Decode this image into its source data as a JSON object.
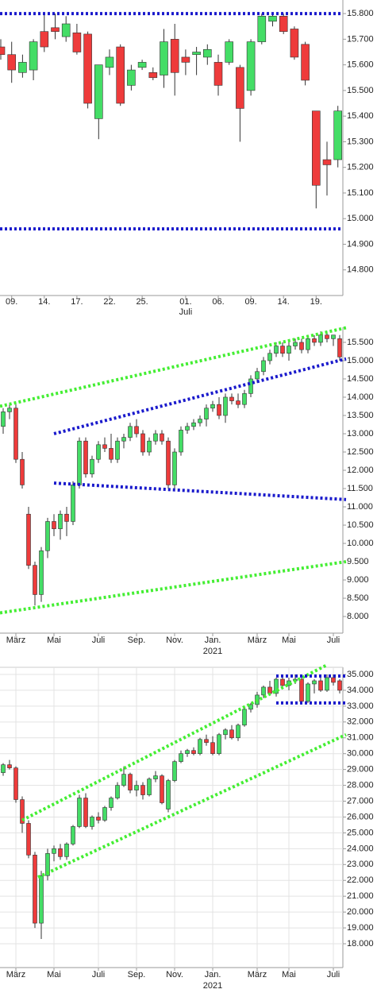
{
  "chart_data": [
    {
      "type": "candlestick",
      "categories": [
        null,
        "09.",
        null,
        null,
        "14.",
        null,
        null,
        "17.",
        null,
        null,
        "22.",
        null,
        null,
        "25.",
        null,
        null,
        null,
        "01.",
        null,
        null,
        "06.",
        null,
        null,
        "09.",
        null,
        null,
        "14.",
        null,
        null,
        "19.",
        null,
        null
      ],
      "category_sublabels": [
        null,
        null,
        null,
        null,
        null,
        null,
        null,
        null,
        null,
        null,
        null,
        null,
        null,
        null,
        null,
        null,
        null,
        "Juli",
        null,
        null,
        null,
        null,
        null,
        null,
        null,
        null,
        null,
        null,
        null,
        null,
        null,
        null
      ],
      "open": [
        15670,
        15640,
        15570,
        15580,
        15730,
        15745,
        15710,
        15725,
        15720,
        15390,
        15590,
        15670,
        15520,
        15590,
        15570,
        15560,
        15700,
        15630,
        15640,
        15630,
        15610,
        15610,
        15590,
        15500,
        15690,
        15770,
        15790,
        15740,
        15680,
        15420,
        15230,
        15230
      ],
      "high": [
        15700,
        15690,
        15640,
        15700,
        15800,
        15800,
        15790,
        15760,
        15730,
        15600,
        15660,
        15680,
        15600,
        15620,
        15590,
        15740,
        15760,
        15660,
        15670,
        15680,
        15640,
        15700,
        15600,
        15700,
        15800,
        15800,
        15800,
        15750,
        15690,
        15420,
        15300,
        15440
      ],
      "low": [
        15620,
        15530,
        15550,
        15540,
        15650,
        15700,
        15690,
        15640,
        15430,
        15310,
        15560,
        15440,
        15500,
        15580,
        15540,
        15510,
        15480,
        15560,
        15560,
        15600,
        15480,
        15600,
        15300,
        15480,
        15680,
        15750,
        15720,
        15620,
        15520,
        15040,
        15090,
        15200
      ],
      "close": [
        15640,
        15580,
        15610,
        15690,
        15670,
        15730,
        15760,
        15650,
        15450,
        15600,
        15630,
        15450,
        15580,
        15610,
        15550,
        15690,
        15570,
        15610,
        15650,
        15660,
        15520,
        15690,
        15430,
        15690,
        15790,
        15790,
        15730,
        15630,
        15540,
        15130,
        15210,
        15420
      ],
      "up_color": "#44dd66",
      "down_color": "#ee3b3b",
      "ylim": [
        14700,
        15853
      ],
      "yticks": [
        {
          "value": 14800,
          "label": "14.800"
        },
        {
          "value": 14900,
          "label": "14.900"
        },
        {
          "value": 15000,
          "label": "15.000"
        },
        {
          "value": 15100,
          "label": "15.100"
        },
        {
          "value": 15200,
          "label": "15.200"
        },
        {
          "value": 15300,
          "label": "15.300"
        },
        {
          "value": 15400,
          "label": "15.400"
        },
        {
          "value": 15500,
          "label": "15.500"
        },
        {
          "value": 15600,
          "label": "15.600"
        },
        {
          "value": 15700,
          "label": "15.700"
        },
        {
          "value": 15800,
          "label": "15.800"
        }
      ],
      "grid": false,
      "hlines": [
        {
          "color": "#1a1acc",
          "value": 15800
        },
        {
          "color": "#1a1acc",
          "value": 14960
        }
      ]
    },
    {
      "type": "candlestick",
      "categories": [
        null,
        null,
        "März",
        null,
        null,
        null,
        null,
        null,
        "Mai",
        null,
        null,
        null,
        null,
        null,
        null,
        "Juli",
        null,
        null,
        null,
        null,
        null,
        "Sep.",
        null,
        null,
        null,
        null,
        null,
        "Nov.",
        null,
        null,
        null,
        null,
        null,
        "Jan.",
        null,
        null,
        null,
        null,
        null,
        null,
        "März",
        null,
        null,
        null,
        null,
        "Mai",
        null,
        null,
        null,
        null,
        null,
        null,
        "Juli",
        null
      ],
      "category_sublabels": [
        null,
        null,
        null,
        null,
        null,
        null,
        null,
        null,
        null,
        null,
        null,
        null,
        null,
        null,
        null,
        null,
        null,
        null,
        null,
        null,
        null,
        null,
        null,
        null,
        null,
        null,
        null,
        null,
        null,
        null,
        null,
        null,
        null,
        "2021",
        null,
        null,
        null,
        null,
        null,
        null,
        null,
        null,
        null,
        null,
        null,
        null,
        null,
        null,
        null,
        null,
        null,
        null,
        null,
        null
      ],
      "open": [
        13200,
        13600,
        13700,
        12300,
        10800,
        9400,
        8600,
        9800,
        10600,
        10400,
        10800,
        10600,
        11600,
        12800,
        11900,
        12300,
        12700,
        12600,
        12300,
        12800,
        12900,
        13200,
        13000,
        12500,
        12800,
        13000,
        12800,
        11600,
        12500,
        13100,
        13200,
        13300,
        13400,
        13700,
        13800,
        13500,
        14000,
        13900,
        13800,
        14100,
        14500,
        14700,
        15000,
        15200,
        15400,
        15200,
        15400,
        15500,
        15300,
        15600,
        15500,
        15700,
        15600,
        15600
      ],
      "high": [
        13700,
        13800,
        13800,
        12500,
        11000,
        9500,
        9900,
        10700,
        10800,
        10900,
        11000,
        11700,
        12900,
        12900,
        12400,
        12800,
        12900,
        13000,
        12900,
        13000,
        13300,
        13400,
        13100,
        12900,
        13100,
        13100,
        12900,
        12600,
        13200,
        13300,
        13400,
        13500,
        13800,
        13900,
        14000,
        14100,
        14100,
        14100,
        14200,
        14600,
        14800,
        15100,
        15300,
        15500,
        15500,
        15500,
        15600,
        15600,
        15700,
        15700,
        15800,
        15800,
        15700,
        15700
      ],
      "low": [
        13000,
        13400,
        12200,
        11500,
        9300,
        8300,
        8400,
        9600,
        10200,
        10100,
        10200,
        10500,
        11500,
        11800,
        11800,
        12200,
        12500,
        12200,
        12200,
        12600,
        12800,
        12900,
        12400,
        12400,
        12700,
        12700,
        11500,
        11500,
        12400,
        13000,
        13100,
        13200,
        13200,
        13600,
        13400,
        13300,
        13800,
        13700,
        13700,
        14000,
        14400,
        14600,
        14900,
        15100,
        15100,
        15000,
        15300,
        15200,
        15200,
        15400,
        15400,
        15500,
        15400,
        15000
      ],
      "close": [
        13600,
        13700,
        12300,
        11600,
        9400,
        8600,
        9800,
        10600,
        10400,
        10800,
        10600,
        11600,
        12800,
        11900,
        12300,
        12700,
        12600,
        12300,
        12800,
        12900,
        13200,
        13000,
        12500,
        12800,
        13000,
        12800,
        11600,
        12500,
        13100,
        13200,
        13300,
        13400,
        13700,
        13800,
        13500,
        14000,
        13900,
        13800,
        14100,
        14500,
        14700,
        15000,
        15200,
        15400,
        15200,
        15400,
        15500,
        15300,
        15600,
        15500,
        15700,
        15600,
        15700,
        15100
      ],
      "up_color": "#44dd66",
      "down_color": "#ee3b3b",
      "ylim": [
        7545,
        15912
      ],
      "yticks": [
        {
          "value": 8000,
          "label": "8.000"
        },
        {
          "value": 8500,
          "label": "8.500"
        },
        {
          "value": 9000,
          "label": "9.000"
        },
        {
          "value": 9500,
          "label": "9.500"
        },
        {
          "value": 10000,
          "label": "10.000"
        },
        {
          "value": 10500,
          "label": "10.500"
        },
        {
          "value": 11000,
          "label": "11.000"
        },
        {
          "value": 11500,
          "label": "11.500"
        },
        {
          "value": 12000,
          "label": "12.000"
        },
        {
          "value": 12500,
          "label": "12.500"
        },
        {
          "value": 13000,
          "label": "13.000"
        },
        {
          "value": 13500,
          "label": "13.500"
        },
        {
          "value": 14000,
          "label": "14.000"
        },
        {
          "value": 14500,
          "label": "14.500"
        },
        {
          "value": 15000,
          "label": "15.000"
        },
        {
          "value": 15500,
          "label": "15.500"
        }
      ],
      "grid": false,
      "trend_lines": [
        {
          "color": "#44ee33",
          "points": [
            [
              -0.5,
              13750
            ],
            [
              54,
              15900
            ]
          ]
        },
        {
          "color": "#44ee33",
          "points": [
            [
              -0.5,
              8100
            ],
            [
              54,
              9500
            ]
          ]
        },
        {
          "color": "#1a1acc",
          "points": [
            [
              8,
              13000
            ],
            [
              54,
              15050
            ]
          ]
        },
        {
          "color": "#1a1acc",
          "points": [
            [
              8,
              11650
            ],
            [
              54,
              11200
            ]
          ]
        }
      ]
    },
    {
      "type": "candlestick",
      "categories": [
        null,
        null,
        "März",
        null,
        null,
        null,
        null,
        null,
        "Mai",
        null,
        null,
        null,
        null,
        null,
        null,
        "Juli",
        null,
        null,
        null,
        null,
        null,
        "Sep.",
        null,
        null,
        null,
        null,
        null,
        "Nov.",
        null,
        null,
        null,
        null,
        null,
        "Jan.",
        null,
        null,
        null,
        null,
        null,
        null,
        "März",
        null,
        null,
        null,
        null,
        "Mai",
        null,
        null,
        null,
        null,
        null,
        null,
        "Juli",
        null
      ],
      "category_sublabels": [
        null,
        null,
        null,
        null,
        null,
        null,
        null,
        null,
        null,
        null,
        null,
        null,
        null,
        null,
        null,
        null,
        null,
        null,
        null,
        null,
        null,
        null,
        null,
        null,
        null,
        null,
        null,
        null,
        null,
        null,
        null,
        null,
        null,
        "2021",
        null,
        null,
        null,
        null,
        null,
        null,
        null,
        null,
        null,
        null,
        null,
        null,
        null,
        null,
        null,
        null,
        null,
        null,
        null,
        null
      ],
      "open": [
        28800,
        29300,
        29100,
        27100,
        25600,
        23600,
        19300,
        22300,
        23700,
        24000,
        23500,
        24300,
        25400,
        27200,
        25400,
        26000,
        25800,
        26600,
        27200,
        28000,
        28700,
        27700,
        28000,
        27400,
        28400,
        28600,
        26500,
        28300,
        29500,
        30000,
        30200,
        30000,
        30900,
        30700,
        30000,
        31200,
        31500,
        31000,
        31800,
        32800,
        33100,
        33700,
        34200,
        33800,
        34700,
        34300,
        34600,
        34700,
        33300,
        34400,
        34600,
        34000,
        34800,
        34600
      ],
      "high": [
        29400,
        29600,
        29200,
        27300,
        25800,
        23800,
        22600,
        24000,
        24200,
        24300,
        24400,
        25500,
        27400,
        27500,
        26100,
        26300,
        26700,
        27300,
        28200,
        29200,
        28800,
        28300,
        28200,
        28500,
        28900,
        28700,
        28400,
        29600,
        30200,
        30300,
        30400,
        31000,
        31200,
        31100,
        31300,
        31600,
        31800,
        31900,
        32900,
        33200,
        33900,
        34300,
        34600,
        34800,
        34900,
        34800,
        35000,
        34900,
        34500,
        34700,
        34800,
        35000,
        35000,
        34700
      ],
      "low": [
        28600,
        29000,
        26900,
        25000,
        23400,
        19000,
        18300,
        22000,
        23200,
        23300,
        23300,
        24200,
        25300,
        25300,
        25200,
        25600,
        25700,
        26400,
        27100,
        27900,
        27500,
        27300,
        27100,
        27300,
        28200,
        26800,
        26300,
        28200,
        29400,
        29800,
        29900,
        29900,
        30500,
        29900,
        29900,
        30900,
        30900,
        30800,
        31700,
        32600,
        32900,
        33500,
        33700,
        33600,
        34100,
        34000,
        34400,
        33100,
        33200,
        33800,
        33900,
        33900,
        34300,
        33800
      ],
      "close": [
        29300,
        29100,
        27100,
        25600,
        23600,
        19300,
        22300,
        23700,
        24000,
        23500,
        24300,
        25400,
        27200,
        25400,
        26000,
        25800,
        26600,
        27200,
        28000,
        28700,
        27700,
        28000,
        27400,
        28400,
        28600,
        26900,
        28300,
        29500,
        30000,
        30200,
        30000,
        30900,
        30700,
        30000,
        31200,
        31500,
        31000,
        31800,
        32800,
        33100,
        33700,
        34200,
        33800,
        34700,
        34300,
        34600,
        34700,
        33300,
        34400,
        34600,
        34000,
        34800,
        34500,
        34000
      ],
      "up_color": "#44dd66",
      "down_color": "#ee3b3b",
      "ylim": [
        16496,
        35451
      ],
      "yticks": [
        {
          "value": 18000,
          "label": "18.000"
        },
        {
          "value": 19000,
          "label": "19.000"
        },
        {
          "value": 20000,
          "label": "20.000"
        },
        {
          "value": 21000,
          "label": "21.000"
        },
        {
          "value": 22000,
          "label": "22.000"
        },
        {
          "value": 23000,
          "label": "23.000"
        },
        {
          "value": 24000,
          "label": "24.000"
        },
        {
          "value": 25000,
          "label": "25.000"
        },
        {
          "value": 26000,
          "label": "26.000"
        },
        {
          "value": 27000,
          "label": "27.000"
        },
        {
          "value": 28000,
          "label": "28.000"
        },
        {
          "value": 29000,
          "label": "29.000"
        },
        {
          "value": 30000,
          "label": "30.000"
        },
        {
          "value": 31000,
          "label": "31.000"
        },
        {
          "value": 32000,
          "label": "32.000"
        },
        {
          "value": 33000,
          "label": "33.000"
        },
        {
          "value": 34000,
          "label": "34.000"
        },
        {
          "value": 35000,
          "label": "35.000"
        }
      ],
      "grid": true,
      "trend_lines": [
        {
          "color": "#44ee33",
          "points": [
            [
              3,
              25800
            ],
            [
              51,
              35600
            ]
          ]
        },
        {
          "color": "#44ee33",
          "points": [
            [
              5.5,
              22200
            ],
            [
              54,
              31200
            ]
          ]
        },
        {
          "color": "#1a1acc",
          "points": [
            [
              43,
              34900
            ],
            [
              54,
              34900
            ]
          ]
        },
        {
          "color": "#1a1acc",
          "points": [
            [
              43,
              33200
            ],
            [
              54,
              33200
            ]
          ]
        }
      ]
    }
  ]
}
